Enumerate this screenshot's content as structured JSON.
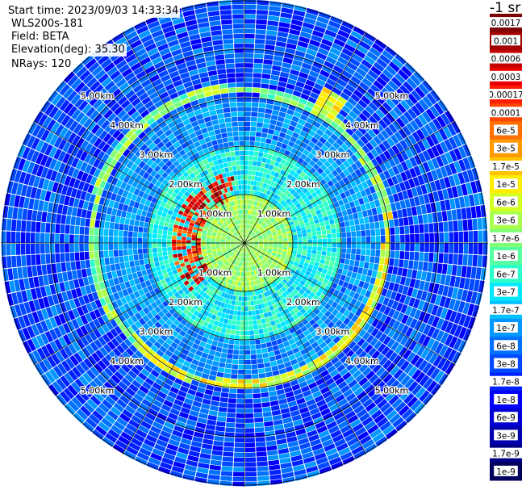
{
  "header": {
    "start_time": "Start time: 2023/09/03 14:33:34",
    "instrument": "WLS200s-181",
    "field": "Field: BETA",
    "elevation": "Elevation(deg): 35.30",
    "nrays": "NRays: 120"
  },
  "colorbar": {
    "unit_label": "-1 sr",
    "labels": [
      "0.0017",
      "0.001",
      "0.0006",
      "0.0003",
      "0.00017",
      "0.0001",
      "6e-5",
      "3e-5",
      "1.7e-5",
      "1e-5",
      "6e-6",
      "3e-6",
      "1.7e-6",
      "1e-6",
      "6e-7",
      "3e-7",
      "1.7e-7",
      "1e-7",
      "6e-8",
      "3e-8",
      "1.7e-8",
      "1e-8",
      "6e-9",
      "3e-9",
      "1.7e-9",
      "1e-9"
    ],
    "colors": [
      "#7f0000",
      "#a00000",
      "#c40000",
      "#e80000",
      "#ff1e00",
      "#ff4600",
      "#ff7000",
      "#ff9a00",
      "#ffc400",
      "#ffee00",
      "#d4ff22",
      "#aaff4c",
      "#80ff76",
      "#56ffa0",
      "#2cffca",
      "#00e8ff",
      "#00c0ff",
      "#0098ff",
      "#0070ff",
      "#0048ff",
      "#0020ff",
      "#0000fc",
      "#0000d4",
      "#0000ac",
      "#000084",
      "#00005c"
    ]
  },
  "chart_data": {
    "type": "polar_ppi",
    "field": "BETA",
    "elevation_deg": 35.3,
    "nrays": 120,
    "range_rings_km": [
      1.0,
      2.0,
      3.0,
      4.0,
      5.0
    ],
    "ring_labels": [
      "1.00km",
      "2.00km",
      "3.00km",
      "4.00km",
      "5.00km"
    ],
    "colorscale": "log10 backscatter, 1e-9 to 0.0017"
  }
}
